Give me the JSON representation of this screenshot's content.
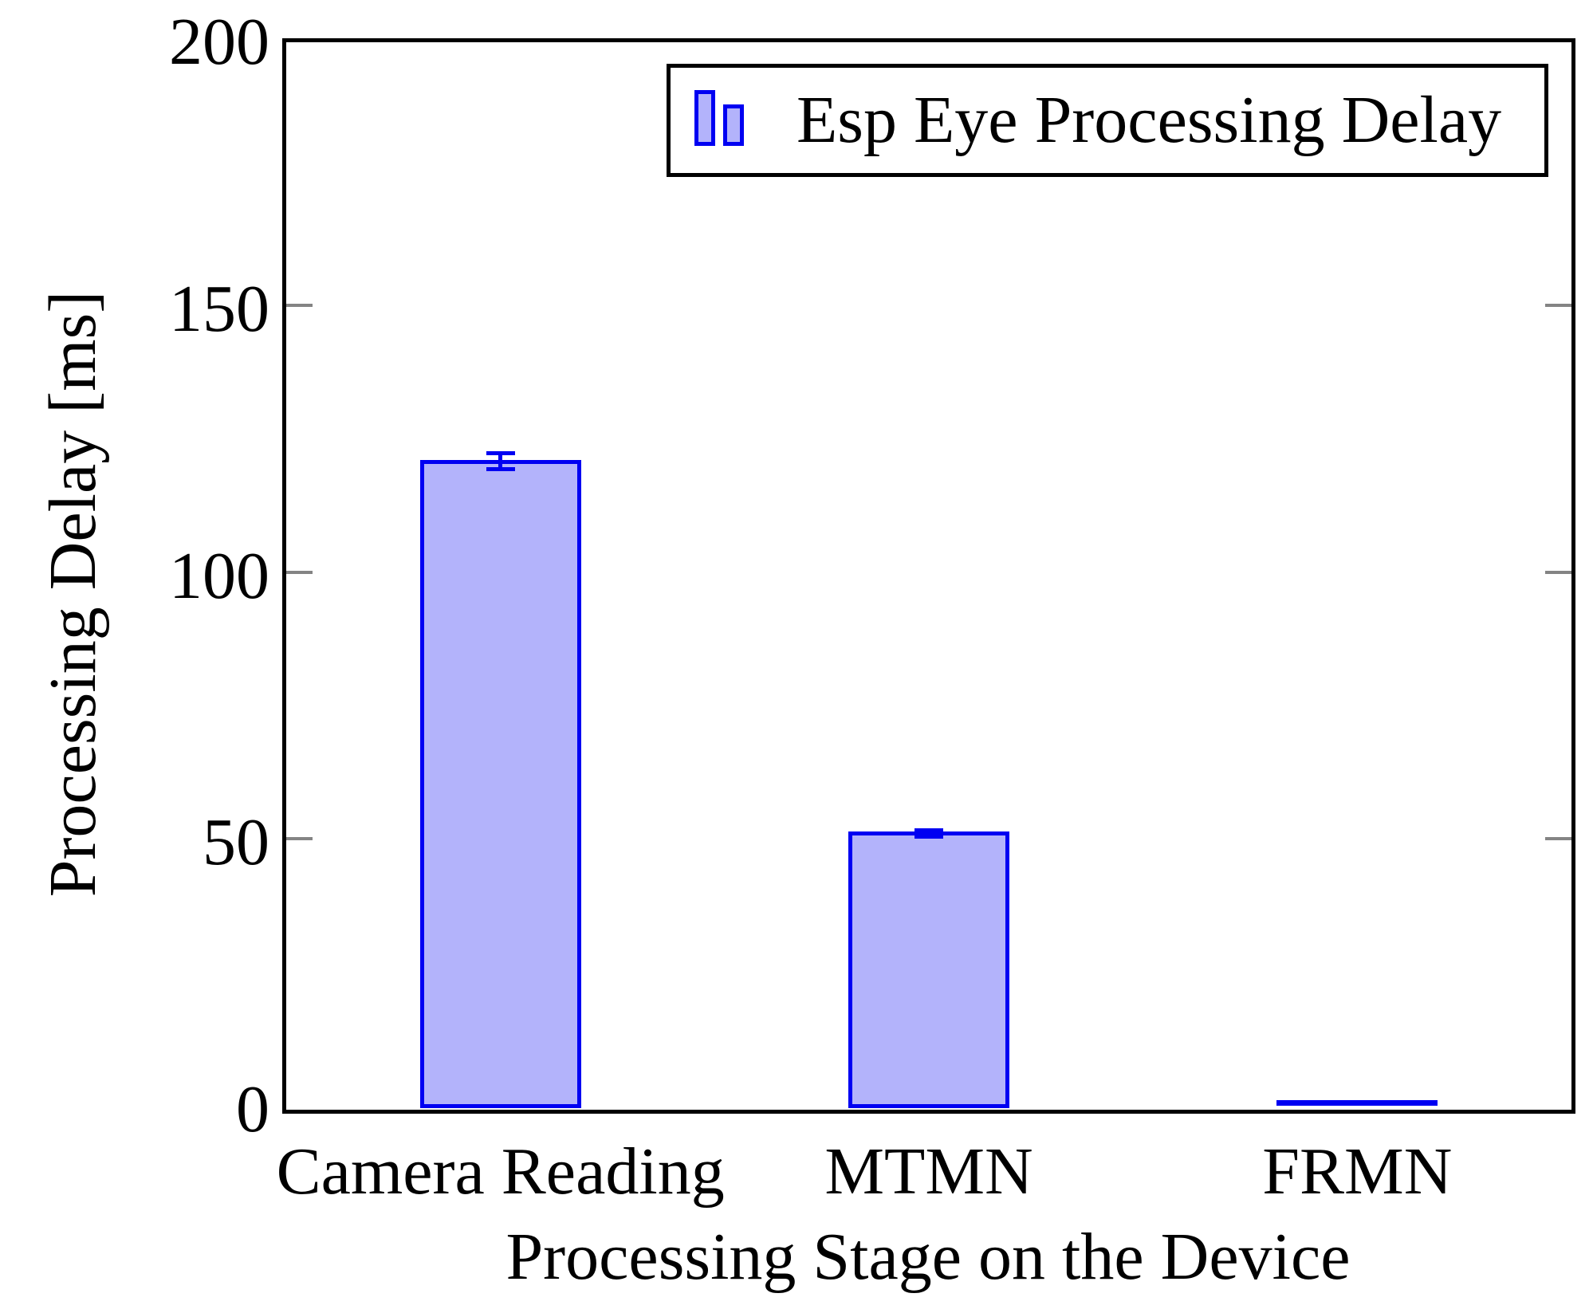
{
  "chart_data": {
    "type": "bar",
    "title": "",
    "xlabel": "Processing Stage on the Device",
    "ylabel": "Processing Delay [ms]",
    "categories": [
      "Camera Reading",
      "MTMN",
      "FRMN"
    ],
    "series": [
      {
        "name": "Esp Eye Processing Delay",
        "values": [
          121.5,
          51.8,
          0.4
        ],
        "errors": [
          1.5,
          0.6,
          0
        ]
      }
    ],
    "legend": [
      "Esp Eye Processing Delay"
    ],
    "legend_position": "top-center-inside",
    "ylim": [
      0,
      200
    ],
    "yticks": [
      0,
      50,
      100,
      150,
      200
    ],
    "grid": false,
    "colors": {
      "bar_fill": "#b3b3fb",
      "bar_edge": "#0000f2",
      "axis": "#000000",
      "tick": "#848484",
      "text": "#000000",
      "background": "#ffffff"
    }
  }
}
